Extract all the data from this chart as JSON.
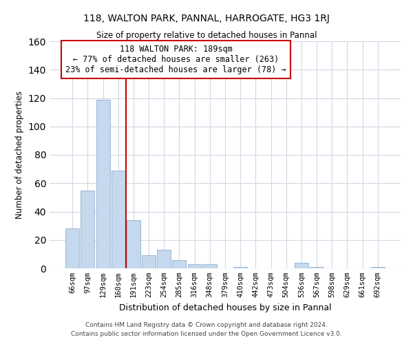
{
  "title1": "118, WALTON PARK, PANNAL, HARROGATE, HG3 1RJ",
  "title2": "Size of property relative to detached houses in Pannal",
  "xlabel": "Distribution of detached houses by size in Pannal",
  "ylabel": "Number of detached properties",
  "categories": [
    "66sqm",
    "97sqm",
    "129sqm",
    "160sqm",
    "191sqm",
    "223sqm",
    "254sqm",
    "285sqm",
    "316sqm",
    "348sqm",
    "379sqm",
    "410sqm",
    "442sqm",
    "473sqm",
    "504sqm",
    "536sqm",
    "567sqm",
    "598sqm",
    "629sqm",
    "661sqm",
    "692sqm"
  ],
  "values": [
    28,
    55,
    119,
    69,
    34,
    9,
    13,
    6,
    3,
    3,
    0,
    1,
    0,
    0,
    0,
    4,
    1,
    0,
    0,
    0,
    1
  ],
  "bar_color": "#c5d8ed",
  "bar_edge_color": "#a0bcd8",
  "vline_color": "#cc0000",
  "annotation_line1": "118 WALTON PARK: 189sqm",
  "annotation_line2": "← 77% of detached houses are smaller (263)",
  "annotation_line3": "23% of semi-detached houses are larger (78) →",
  "ylim": [
    0,
    160
  ],
  "yticks": [
    0,
    20,
    40,
    60,
    80,
    100,
    120,
    140,
    160
  ],
  "footer": "Contains HM Land Registry data © Crown copyright and database right 2024.\nContains public sector information licensed under the Open Government Licence v3.0.",
  "background_color": "#ffffff",
  "grid_color": "#d0d8e4"
}
